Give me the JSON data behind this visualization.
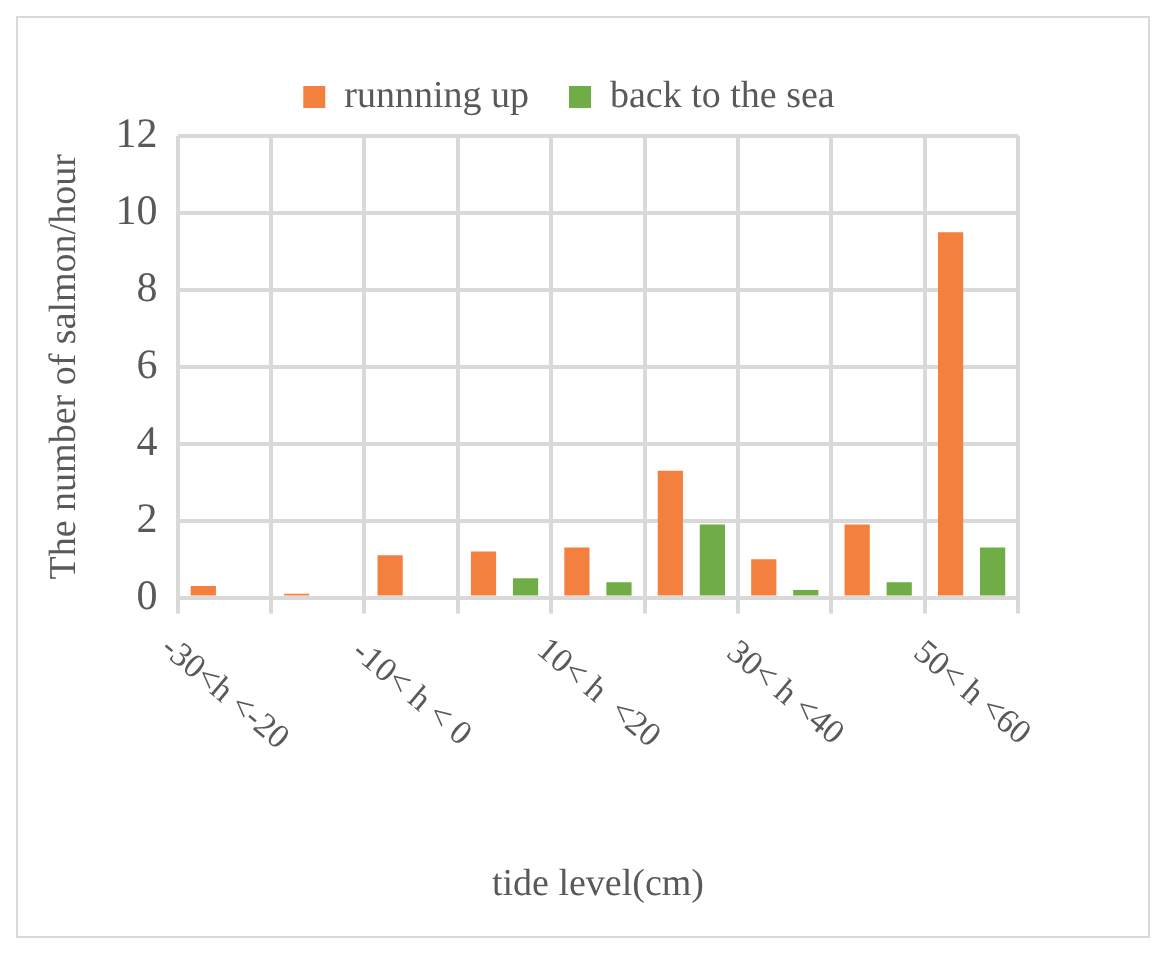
{
  "chart_data": {
    "type": "bar",
    "xlabel": "tide level(cm)",
    "ylabel": "The number of salmon/hour",
    "categories": [
      "-30<h <-20",
      null,
      "-10< h < 0",
      null,
      "10< h  <20",
      null,
      "30< h <40",
      null,
      "50< h <60"
    ],
    "series": [
      {
        "name": "runnning up",
        "color": "#f4803f",
        "values": [
          0.3,
          0.1,
          1.1,
          1.2,
          1.3,
          3.3,
          1.0,
          1.9,
          9.5
        ]
      },
      {
        "name": "back to the sea",
        "color": "#70ad47",
        "values": [
          null,
          null,
          null,
          0.5,
          0.4,
          1.9,
          0.2,
          0.4,
          1.3
        ]
      }
    ],
    "ylim": [
      0,
      12
    ],
    "yticks": [
      0,
      2,
      4,
      6,
      8,
      10,
      12
    ],
    "grid": true,
    "legend": "top"
  }
}
